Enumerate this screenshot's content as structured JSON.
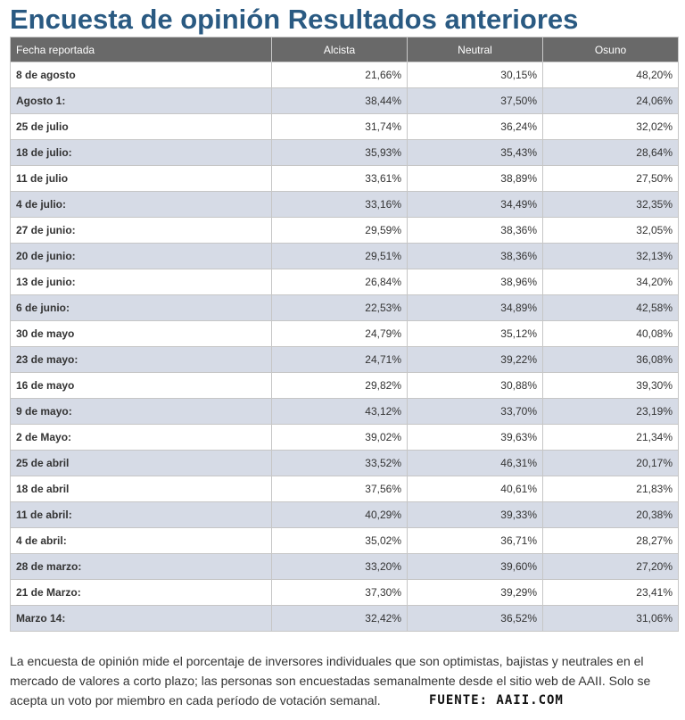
{
  "title": "Encuesta de opinión Resultados anteriores",
  "table": {
    "headers": [
      "Fecha reportada",
      "Alcista",
      "Neutral",
      "Osuno"
    ],
    "rows": [
      [
        "8 de agosto",
        "21,66%",
        "30,15%",
        "48,20%"
      ],
      [
        "Agosto 1:",
        "38,44%",
        "37,50%",
        "24,06%"
      ],
      [
        "25 de julio",
        "31,74%",
        "36,24%",
        "32,02%"
      ],
      [
        "18 de julio:",
        "35,93%",
        "35,43%",
        "28,64%"
      ],
      [
        "11 de julio",
        "33,61%",
        "38,89%",
        "27,50%"
      ],
      [
        "4 de julio:",
        "33,16%",
        "34,49%",
        "32,35%"
      ],
      [
        "27 de junio:",
        "29,59%",
        "38,36%",
        "32,05%"
      ],
      [
        "20 de junio:",
        "29,51%",
        "38,36%",
        "32,13%"
      ],
      [
        "13 de junio:",
        "26,84%",
        "38,96%",
        "34,20%"
      ],
      [
        "6 de junio:",
        "22,53%",
        "34,89%",
        "42,58%"
      ],
      [
        "30 de mayo",
        "24,79%",
        "35,12%",
        "40,08%"
      ],
      [
        "23 de mayo:",
        "24,71%",
        "39,22%",
        "36,08%"
      ],
      [
        "16 de mayo",
        "29,82%",
        "30,88%",
        "39,30%"
      ],
      [
        "9 de mayo:",
        "43,12%",
        "33,70%",
        "23,19%"
      ],
      [
        "2 de Mayo:",
        "39,02%",
        "39,63%",
        "21,34%"
      ],
      [
        "25 de abril",
        "33,52%",
        "46,31%",
        "20,17%"
      ],
      [
        "18 de abril",
        "37,56%",
        "40,61%",
        "21,83%"
      ],
      [
        "11 de abril:",
        "40,29%",
        "39,33%",
        "20,38%"
      ],
      [
        "4 de abril:",
        "35,02%",
        "36,71%",
        "28,27%"
      ],
      [
        "28 de marzo:",
        "33,20%",
        "39,60%",
        "27,20%"
      ],
      [
        "21 de Marzo:",
        "37,30%",
        "39,29%",
        "23,41%"
      ],
      [
        "Marzo 14:",
        "32,42%",
        "36,52%",
        "31,06%"
      ]
    ]
  },
  "footnote": "La encuesta de opinión mide el porcentaje de inversores individuales que son optimistas, bajistas y neutrales en el mercado de valores a corto plazo; las personas son encuestadas semanalmente desde el sitio web de AAII. Solo se acepta un voto por miembro en cada período de votación semanal.",
  "source": "FUENTE: AAII.COM",
  "colors": {
    "title": "#2a5a82",
    "header_bg": "#696969",
    "row_alt_bg": "#d6dbe6"
  }
}
